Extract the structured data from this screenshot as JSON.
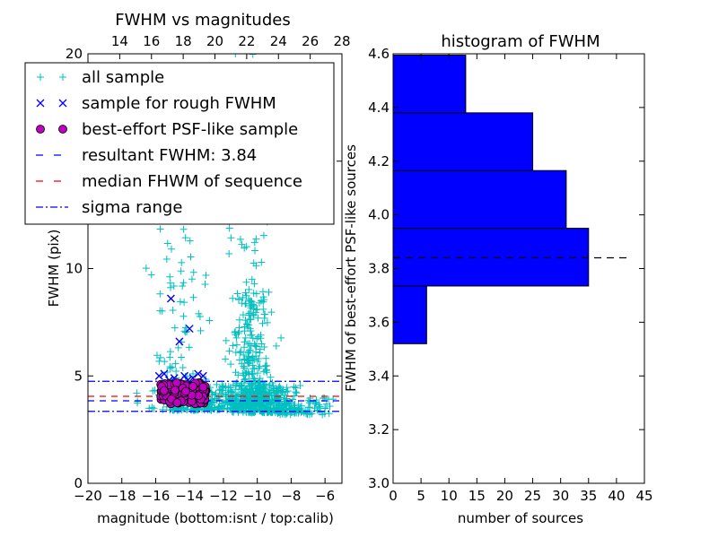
{
  "chart_data": [
    {
      "type": "scatter",
      "title": "FWHM vs magnitudes",
      "xlabel": "magnitude (bottom:isnt / top:calib)",
      "ylabel": "FWHM (pix)",
      "xlim": [
        -20,
        -5
      ],
      "ylim": [
        0,
        20
      ],
      "x_ticks": [
        -20,
        -18,
        -16,
        -14,
        -12,
        -10,
        -8,
        -6
      ],
      "x_tick_labels": [
        "−20",
        "−18",
        "−16",
        "−14",
        "−12",
        "−10",
        "−8",
        "−6"
      ],
      "y_ticks": [
        0,
        5,
        10,
        15,
        20
      ],
      "y_tick_labels": [
        "0",
        "5",
        "10",
        "15",
        "20"
      ],
      "top_axis": {
        "xlim": [
          12,
          28
        ],
        "ticks": [
          14,
          16,
          18,
          20,
          22,
          24,
          26,
          28
        ],
        "tick_labels": [
          "14",
          "16",
          "18",
          "20",
          "22",
          "24",
          "26",
          "28"
        ]
      },
      "legend_position": "upper-left",
      "series": [
        {
          "name": "all sample",
          "marker": "plus",
          "color": "#00bfbf",
          "clusters": [
            {
              "x_mean": -10.3,
              "x_sd": 0.6,
              "y_min": 3.6,
              "y_max": 9.0,
              "count": 260
            },
            {
              "x_mean": -10.6,
              "x_sd": 0.7,
              "y_min": 3.3,
              "y_max": 20.0,
              "count": 110
            },
            {
              "x_mean": -9.5,
              "x_sd": 0.8,
              "y_min": 3.3,
              "y_max": 4.6,
              "count": 220
            },
            {
              "x_mean": -12.8,
              "x_sd": 1.6,
              "y_min": 3.4,
              "y_max": 4.6,
              "count": 260
            },
            {
              "x_mean": -7.5,
              "x_sd": 1.0,
              "y_min": 3.2,
              "y_max": 4.0,
              "count": 90
            },
            {
              "x_mean": -14.6,
              "x_sd": 0.9,
              "y_min": 4.2,
              "y_max": 13.0,
              "count": 90
            }
          ]
        },
        {
          "name": "sample for rough FWHM",
          "marker": "x",
          "color": "#0000ff",
          "points": [
            [
              -15.1,
              8.6
            ],
            [
              -14.6,
              6.6
            ],
            [
              -14.0,
              7.2
            ],
            [
              -15.8,
              5.0
            ],
            [
              -15.5,
              5.1
            ],
            [
              -14.9,
              4.9
            ],
            [
              -14.3,
              5.0
            ],
            [
              -13.8,
              4.9
            ],
            [
              -13.5,
              5.1
            ],
            [
              -13.2,
              5.0
            ],
            [
              -15.2,
              4.8
            ],
            [
              -14.1,
              4.8
            ]
          ]
        },
        {
          "name": "best-effort PSF-like sample",
          "marker": "circle",
          "color": "#bf00bf",
          "cluster": {
            "x_min": -15.7,
            "x_max": -13.0,
            "y_min": 3.7,
            "y_max": 4.7,
            "count": 150
          }
        },
        {
          "name": "resultant FWHM: 3.84",
          "type": "hline",
          "y": 3.84,
          "style": "dashed",
          "color": "#0000ff"
        },
        {
          "name": "median FHWM of sequence",
          "type": "hline",
          "y": 4.05,
          "style": "dashed",
          "color": "#ff0000"
        },
        {
          "name": "sigma range",
          "type": "hline",
          "y": [
            3.35,
            4.75
          ],
          "style": "dashdot",
          "color": "#0000ff"
        }
      ]
    },
    {
      "type": "bar",
      "orientation": "horizontal",
      "title": "histogram of FWHM",
      "xlabel": "number of sources",
      "ylabel": "FWHM of best-effort PSF-like sources",
      "xlim": [
        0,
        45
      ],
      "ylim": [
        3.0,
        4.6
      ],
      "x_ticks": [
        0,
        5,
        10,
        15,
        20,
        25,
        30,
        35,
        40,
        45
      ],
      "x_tick_labels": [
        "0",
        "5",
        "10",
        "15",
        "20",
        "25",
        "30",
        "35",
        "40",
        "45"
      ],
      "y_ticks": [
        3.0,
        3.2,
        3.4,
        3.6,
        3.8,
        4.0,
        4.2,
        4.4,
        4.6
      ],
      "y_tick_labels": [
        "3.0",
        "3.2",
        "3.4",
        "3.6",
        "3.8",
        "4.0",
        "4.2",
        "4.4",
        "4.6"
      ],
      "bar_color": "#0000ff",
      "bins": [
        {
          "from": 3.52,
          "to": 3.735,
          "count": 6
        },
        {
          "from": 3.735,
          "to": 3.95,
          "count": 35
        },
        {
          "from": 3.95,
          "to": 4.165,
          "count": 31
        },
        {
          "from": 4.165,
          "to": 4.38,
          "count": 25
        },
        {
          "from": 4.38,
          "to": 4.595,
          "count": 13
        }
      ],
      "reference_line": {
        "y": 3.84,
        "x_range": [
          0,
          42
        ],
        "style": "dashed",
        "color": "#000000"
      }
    }
  ]
}
